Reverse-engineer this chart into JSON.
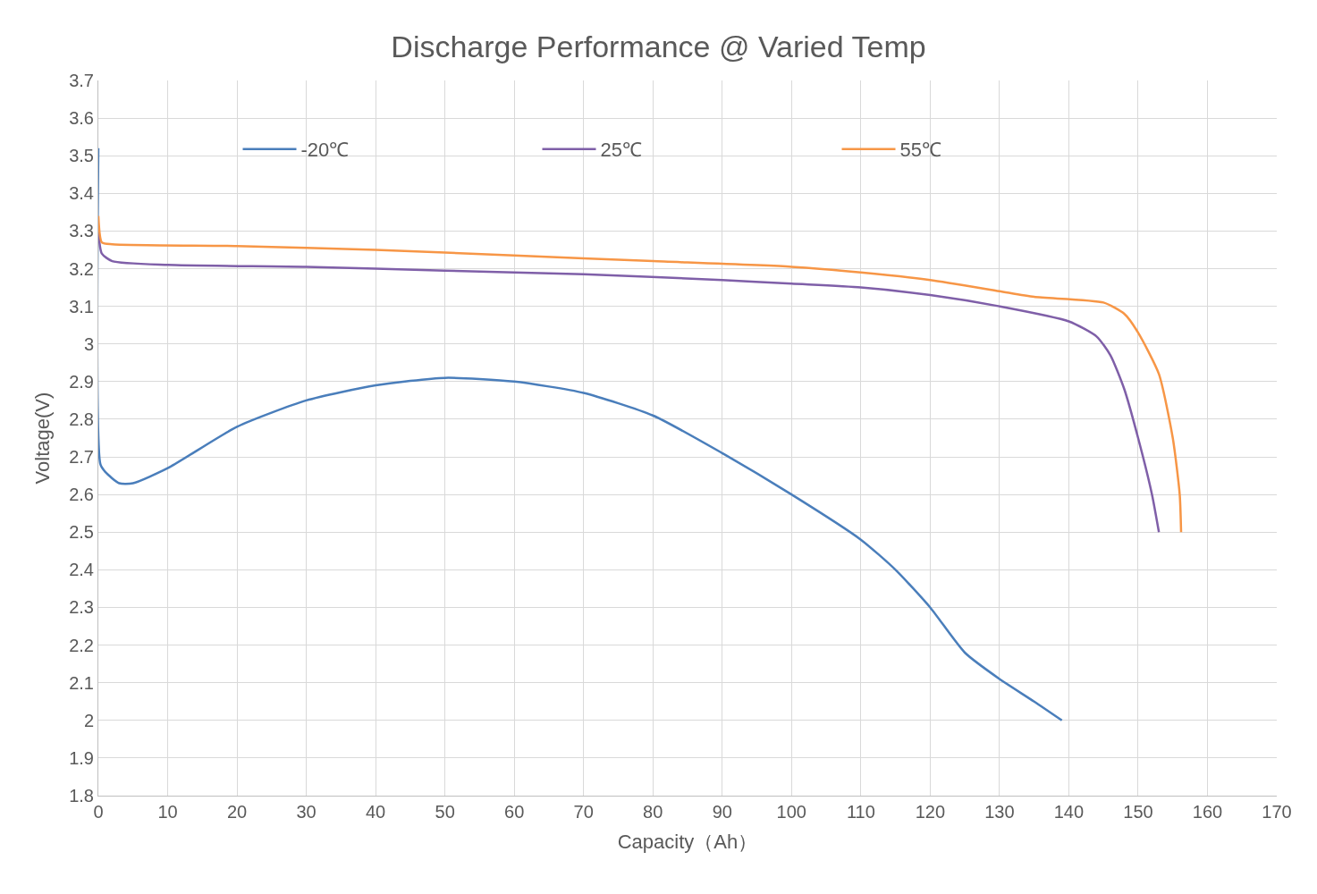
{
  "chart_data": {
    "type": "line",
    "title": "Discharge Performance @ Varied Temp",
    "xlabel": "Capacity（Ah）",
    "ylabel": "Voltage(V)",
    "xlim": [
      0,
      170
    ],
    "xticks": [
      0,
      10,
      20,
      30,
      40,
      50,
      60,
      70,
      80,
      90,
      100,
      110,
      120,
      130,
      140,
      150,
      160,
      170
    ],
    "ylim": [
      1.8,
      3.7
    ],
    "yticks": [
      1.8,
      1.9,
      2,
      2.1,
      2.2,
      2.3,
      2.4,
      2.5,
      2.6,
      2.7,
      2.8,
      2.9,
      3,
      3.1,
      3.2,
      3.3,
      3.4,
      3.5,
      3.6,
      3.7
    ],
    "grid": true,
    "legend": "top",
    "marker": "none",
    "line_style": "solid",
    "series": [
      {
        "name": "-20℃",
        "color": "#4a7ebb",
        "x": [
          0,
          0.3,
          1,
          3,
          5,
          10,
          20,
          30,
          40,
          50,
          60,
          70,
          80,
          90,
          100,
          110,
          115,
          120,
          125,
          130,
          135,
          139
        ],
        "values": [
          3.52,
          2.68,
          2.66,
          2.63,
          2.63,
          2.67,
          2.78,
          2.85,
          2.89,
          2.91,
          2.9,
          2.87,
          2.81,
          2.71,
          2.6,
          2.48,
          2.4,
          2.3,
          2.18,
          2.11,
          2.05,
          2.0
        ]
      },
      {
        "name": "25℃",
        "color": "#7f5fa8",
        "x": [
          0,
          0.5,
          2,
          10,
          30,
          50,
          70,
          90,
          100,
          110,
          120,
          130,
          140,
          144,
          146,
          148,
          150,
          152,
          153
        ],
        "values": [
          3.3,
          3.24,
          3.22,
          3.21,
          3.205,
          3.195,
          3.185,
          3.17,
          3.16,
          3.15,
          3.13,
          3.1,
          3.06,
          3.02,
          2.97,
          2.88,
          2.75,
          2.6,
          2.5
        ]
      },
      {
        "name": "55℃",
        "color": "#f79646",
        "x": [
          0,
          0.5,
          2,
          20,
          40,
          60,
          80,
          100,
          110,
          120,
          130,
          135,
          145,
          148,
          150,
          153,
          155,
          156,
          156.2
        ],
        "values": [
          3.34,
          3.27,
          3.265,
          3.26,
          3.25,
          3.235,
          3.22,
          3.205,
          3.19,
          3.17,
          3.14,
          3.125,
          3.11,
          3.08,
          3.03,
          2.92,
          2.75,
          2.6,
          2.5
        ]
      }
    ]
  }
}
